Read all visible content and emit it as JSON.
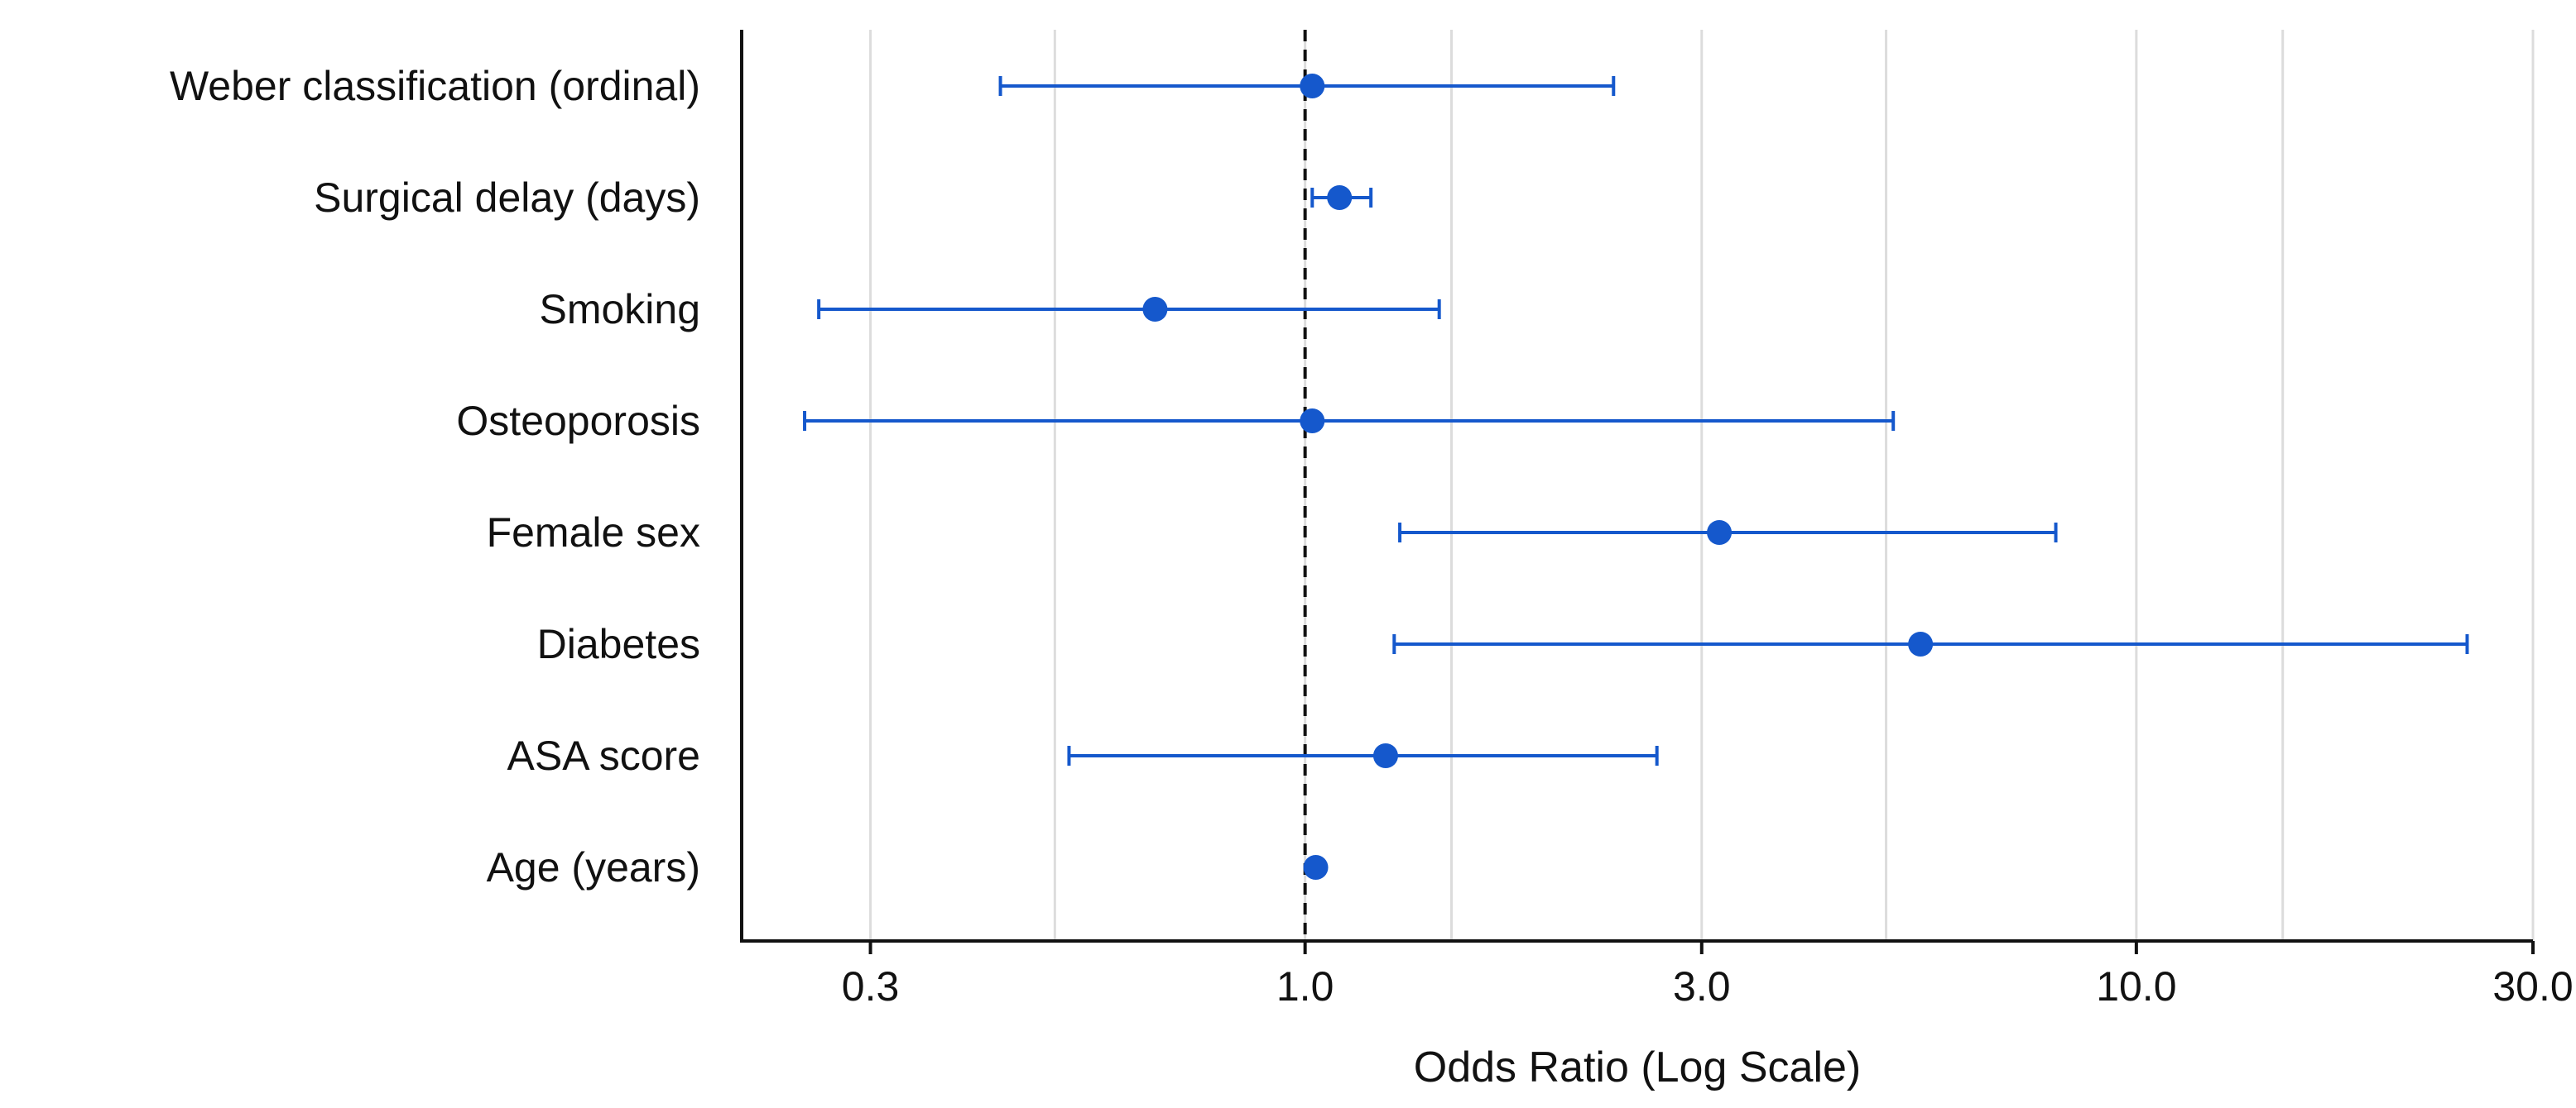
{
  "chart_data": {
    "type": "forest",
    "xlabel": "Odds Ratio (Log Scale)",
    "x_scale": "log",
    "xlim": [
      0.21,
      30
    ],
    "x_ticks": [
      0.3,
      1.0,
      3.0,
      10.0,
      30.0
    ],
    "x_tick_labels": [
      "0.3",
      "1.0",
      "3.0",
      "10.0",
      "30.0"
    ],
    "minor_gridlines": [
      0.3,
      0.5,
      1.0,
      1.5,
      3.0,
      5.0,
      10.0,
      15.0,
      30.0
    ],
    "reference_line": 1.0,
    "grid": true,
    "marker_color": "#1558cc",
    "categories": [
      "Weber classification (ordinal)",
      "Surgical delay (days)",
      "Smoking",
      "Osteoporosis",
      "Female sex",
      "Diabetes",
      "ASA score",
      "Age (years)"
    ],
    "points": [
      {
        "or": 1.02,
        "ci_low": 0.43,
        "ci_high": 2.35
      },
      {
        "or": 1.1,
        "ci_low": 1.02,
        "ci_high": 1.2
      },
      {
        "or": 0.66,
        "ci_low": 0.26,
        "ci_high": 1.45
      },
      {
        "or": 1.02,
        "ci_low": 0.25,
        "ci_high": 5.1
      },
      {
        "or": 3.15,
        "ci_low": 1.3,
        "ci_high": 8.0
      },
      {
        "or": 5.5,
        "ci_low": 1.28,
        "ci_high": 25.0
      },
      {
        "or": 1.25,
        "ci_low": 0.52,
        "ci_high": 2.65
      },
      {
        "or": 1.03,
        "ci_low": 1.03,
        "ci_high": 1.03
      }
    ]
  }
}
